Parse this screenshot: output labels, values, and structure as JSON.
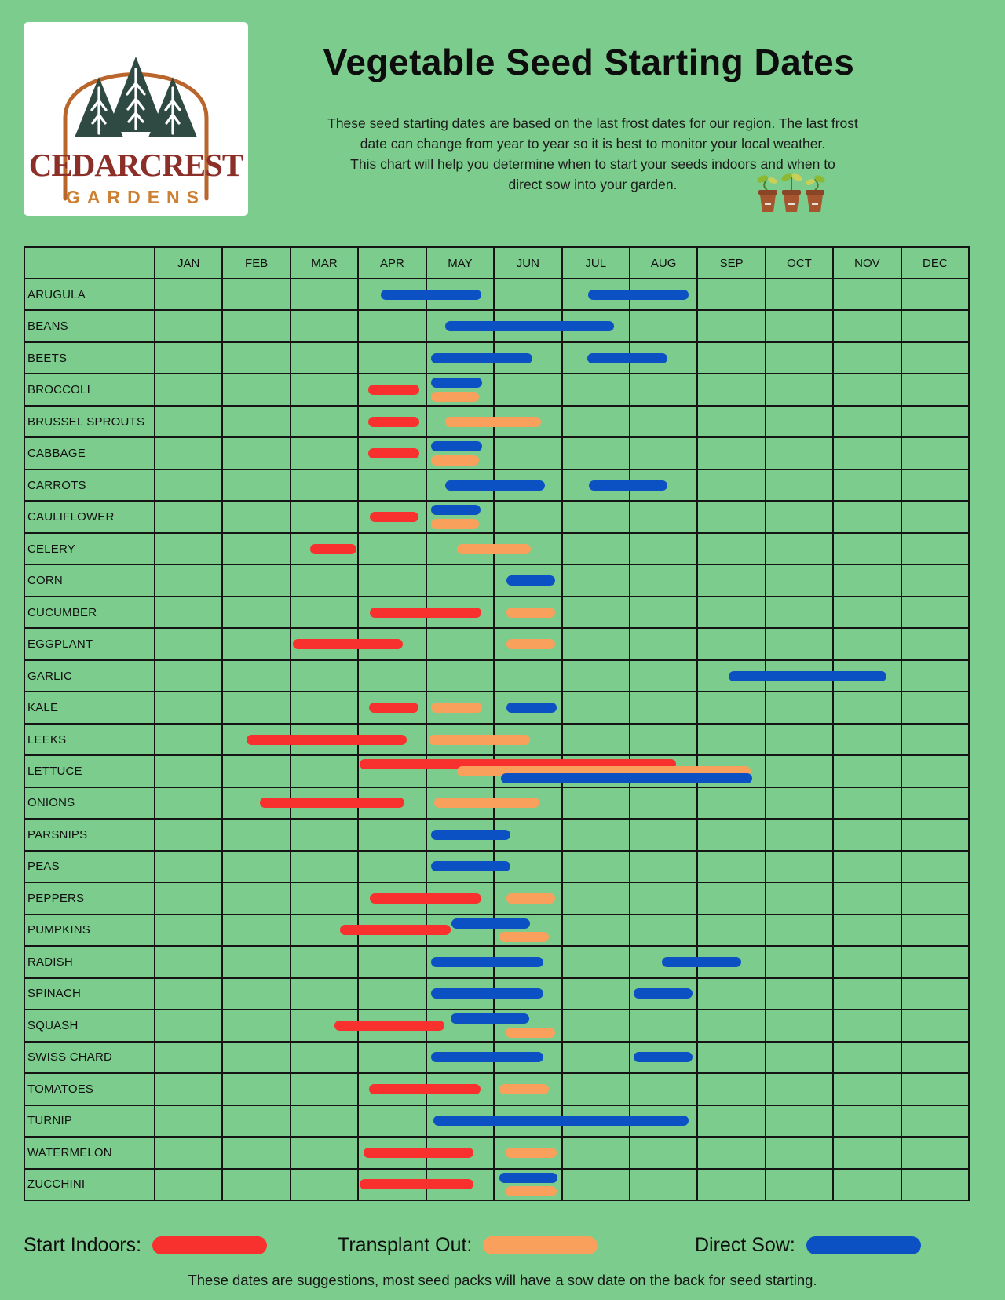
{
  "header": {
    "logo": {
      "brand": "CEDARCREST",
      "sub": "GARDENS"
    },
    "title": "Vegetable Seed Starting Dates",
    "subtitle_lines": [
      "These seed starting dates are based on the last frost dates for our region. The last frost",
      "date can change from year to year so it is best to monitor your local weather.",
      "This chart will help you determine when to start your seeds indoors and when to",
      "direct sow into your garden."
    ]
  },
  "legend": {
    "start_indoors": "Start Indoors:",
    "transplant_out": "Transplant Out:",
    "direct_sow": "Direct Sow:"
  },
  "footer": "These dates are suggestions, most seed packs will have a sow date on the back for seed starting.",
  "colors": {
    "background": "#7ccd8d",
    "start_indoors": "#f8312e",
    "transplant_out": "#f9a05c",
    "direct_sow": "#0c51c4",
    "grid_line": "#141414",
    "logo_brand": "#8c2f28",
    "logo_sub": "#cd7f32",
    "tree_green": "#2e4a42",
    "arch_orange": "#b9662c"
  },
  "chart_data": {
    "type": "gantt",
    "title": "Vegetable Seed Starting Dates",
    "x_unit": "months (0 = Jan 1, 12 = Dec 31)",
    "months": [
      "JAN",
      "FEB",
      "MAR",
      "APR",
      "MAY",
      "JUN",
      "JUL",
      "AUG",
      "SEP",
      "OCT",
      "NOV",
      "DEC"
    ],
    "series_types": [
      {
        "id": "indoors",
        "label": "Start Indoors:"
      },
      {
        "id": "transplant",
        "label": "Transplant Out:"
      },
      {
        "id": "direct",
        "label": "Direct Sow:"
      }
    ],
    "rows": [
      {
        "name": "ARUGULA",
        "bars": [
          {
            "type": "direct",
            "start": 3.33,
            "end": 4.81,
            "lane": "mid"
          },
          {
            "type": "direct",
            "start": 6.39,
            "end": 7.87,
            "lane": "mid"
          }
        ]
      },
      {
        "name": "BEANS",
        "bars": [
          {
            "type": "direct",
            "start": 4.28,
            "end": 6.77,
            "lane": "mid"
          }
        ]
      },
      {
        "name": "BEETS",
        "bars": [
          {
            "type": "direct",
            "start": 4.07,
            "end": 5.56,
            "lane": "mid"
          },
          {
            "type": "direct",
            "start": 6.38,
            "end": 7.56,
            "lane": "mid"
          }
        ]
      },
      {
        "name": "BROCCOLI",
        "bars": [
          {
            "type": "indoors",
            "start": 3.14,
            "end": 3.9,
            "lane": "mid"
          },
          {
            "type": "direct",
            "start": 4.07,
            "end": 4.82,
            "lane": "top"
          },
          {
            "type": "transplant",
            "start": 4.07,
            "end": 4.78,
            "lane": "bot"
          }
        ]
      },
      {
        "name": "BRUSSEL SPROUTS",
        "bars": [
          {
            "type": "indoors",
            "start": 3.14,
            "end": 3.9,
            "lane": "mid"
          },
          {
            "type": "transplant",
            "start": 4.28,
            "end": 5.69,
            "lane": "mid"
          }
        ]
      },
      {
        "name": "CABBAGE",
        "bars": [
          {
            "type": "indoors",
            "start": 3.14,
            "end": 3.9,
            "lane": "mid"
          },
          {
            "type": "direct",
            "start": 4.07,
            "end": 4.82,
            "lane": "top"
          },
          {
            "type": "transplant",
            "start": 4.07,
            "end": 4.78,
            "lane": "bot"
          }
        ]
      },
      {
        "name": "CARROTS",
        "bars": [
          {
            "type": "direct",
            "start": 4.28,
            "end": 5.75,
            "lane": "mid"
          },
          {
            "type": "direct",
            "start": 6.4,
            "end": 7.56,
            "lane": "mid"
          }
        ]
      },
      {
        "name": "CAULIFLOWER",
        "bars": [
          {
            "type": "indoors",
            "start": 3.16,
            "end": 3.88,
            "lane": "mid"
          },
          {
            "type": "direct",
            "start": 4.07,
            "end": 4.8,
            "lane": "top"
          },
          {
            "type": "transplant",
            "start": 4.07,
            "end": 4.78,
            "lane": "bot"
          }
        ]
      },
      {
        "name": "CELERY",
        "bars": [
          {
            "type": "indoors",
            "start": 2.28,
            "end": 2.97,
            "lane": "mid"
          },
          {
            "type": "transplant",
            "start": 4.45,
            "end": 5.54,
            "lane": "mid"
          }
        ]
      },
      {
        "name": "CORN",
        "bars": [
          {
            "type": "direct",
            "start": 5.18,
            "end": 5.9,
            "lane": "mid"
          }
        ]
      },
      {
        "name": "CUCUMBER",
        "bars": [
          {
            "type": "indoors",
            "start": 3.16,
            "end": 4.81,
            "lane": "mid"
          },
          {
            "type": "transplant",
            "start": 5.18,
            "end": 5.9,
            "lane": "mid"
          }
        ]
      },
      {
        "name": "EGGPLANT",
        "bars": [
          {
            "type": "indoors",
            "start": 2.03,
            "end": 3.65,
            "lane": "mid"
          },
          {
            "type": "transplant",
            "start": 5.18,
            "end": 5.9,
            "lane": "mid"
          }
        ]
      },
      {
        "name": "GARLIC",
        "bars": [
          {
            "type": "direct",
            "start": 8.46,
            "end": 10.8,
            "lane": "mid"
          }
        ]
      },
      {
        "name": "KALE",
        "bars": [
          {
            "type": "indoors",
            "start": 3.15,
            "end": 3.88,
            "lane": "mid"
          },
          {
            "type": "transplant",
            "start": 4.07,
            "end": 4.82,
            "lane": "mid"
          },
          {
            "type": "direct",
            "start": 5.18,
            "end": 5.92,
            "lane": "mid"
          }
        ]
      },
      {
        "name": "LEEKS",
        "bars": [
          {
            "type": "indoors",
            "start": 1.34,
            "end": 3.71,
            "lane": "mid"
          },
          {
            "type": "transplant",
            "start": 4.03,
            "end": 5.53,
            "lane": "mid"
          }
        ]
      },
      {
        "name": "LETTUCE",
        "bars": [
          {
            "type": "indoors",
            "start": 3.02,
            "end": 7.69,
            "lane": "top"
          },
          {
            "type": "transplant",
            "start": 4.45,
            "end": 8.79,
            "lane": "mid"
          },
          {
            "type": "direct",
            "start": 5.1,
            "end": 8.81,
            "lane": "bot"
          }
        ]
      },
      {
        "name": "ONIONS",
        "bars": [
          {
            "type": "indoors",
            "start": 1.54,
            "end": 3.68,
            "lane": "mid"
          },
          {
            "type": "transplant",
            "start": 4.12,
            "end": 5.67,
            "lane": "mid"
          }
        ]
      },
      {
        "name": "PARSNIPS",
        "bars": [
          {
            "type": "direct",
            "start": 4.07,
            "end": 5.24,
            "lane": "mid"
          }
        ]
      },
      {
        "name": "PEAS",
        "bars": [
          {
            "type": "direct",
            "start": 4.07,
            "end": 5.24,
            "lane": "mid"
          }
        ]
      },
      {
        "name": "PEPPERS",
        "bars": [
          {
            "type": "indoors",
            "start": 3.16,
            "end": 4.81,
            "lane": "mid"
          },
          {
            "type": "transplant",
            "start": 5.18,
            "end": 5.9,
            "lane": "mid"
          }
        ]
      },
      {
        "name": "PUMPKINS",
        "bars": [
          {
            "type": "indoors",
            "start": 2.72,
            "end": 4.36,
            "lane": "mid"
          },
          {
            "type": "direct",
            "start": 4.37,
            "end": 5.53,
            "lane": "top"
          },
          {
            "type": "transplant",
            "start": 5.08,
            "end": 5.81,
            "lane": "bot"
          }
        ]
      },
      {
        "name": "RADISH",
        "bars": [
          {
            "type": "direct",
            "start": 4.07,
            "end": 5.73,
            "lane": "mid"
          },
          {
            "type": "direct",
            "start": 7.48,
            "end": 8.65,
            "lane": "mid"
          }
        ]
      },
      {
        "name": "SPINACH",
        "bars": [
          {
            "type": "direct",
            "start": 4.07,
            "end": 5.73,
            "lane": "mid"
          },
          {
            "type": "direct",
            "start": 7.06,
            "end": 7.93,
            "lane": "mid"
          }
        ]
      },
      {
        "name": "SQUASH",
        "bars": [
          {
            "type": "indoors",
            "start": 2.64,
            "end": 4.27,
            "lane": "mid"
          },
          {
            "type": "direct",
            "start": 4.36,
            "end": 5.52,
            "lane": "top"
          },
          {
            "type": "transplant",
            "start": 5.17,
            "end": 5.9,
            "lane": "bot"
          }
        ]
      },
      {
        "name": "SWISS CHARD",
        "bars": [
          {
            "type": "direct",
            "start": 4.07,
            "end": 5.73,
            "lane": "mid"
          },
          {
            "type": "direct",
            "start": 7.06,
            "end": 7.93,
            "lane": "mid"
          }
        ]
      },
      {
        "name": "TOMATOES",
        "bars": [
          {
            "type": "indoors",
            "start": 3.15,
            "end": 4.8,
            "lane": "mid"
          },
          {
            "type": "transplant",
            "start": 5.08,
            "end": 5.81,
            "lane": "mid"
          }
        ]
      },
      {
        "name": "TURNIP",
        "bars": [
          {
            "type": "direct",
            "start": 4.1,
            "end": 7.87,
            "lane": "mid"
          }
        ]
      },
      {
        "name": "WATERMELON",
        "bars": [
          {
            "type": "indoors",
            "start": 3.07,
            "end": 4.69,
            "lane": "mid"
          },
          {
            "type": "transplant",
            "start": 5.17,
            "end": 5.92,
            "lane": "mid"
          }
        ]
      },
      {
        "name": "ZUCCHINI",
        "bars": [
          {
            "type": "indoors",
            "start": 3.02,
            "end": 4.69,
            "lane": "mid"
          },
          {
            "type": "direct",
            "start": 5.08,
            "end": 5.94,
            "lane": "top"
          },
          {
            "type": "transplant",
            "start": 5.17,
            "end": 5.92,
            "lane": "bot"
          }
        ]
      }
    ]
  }
}
